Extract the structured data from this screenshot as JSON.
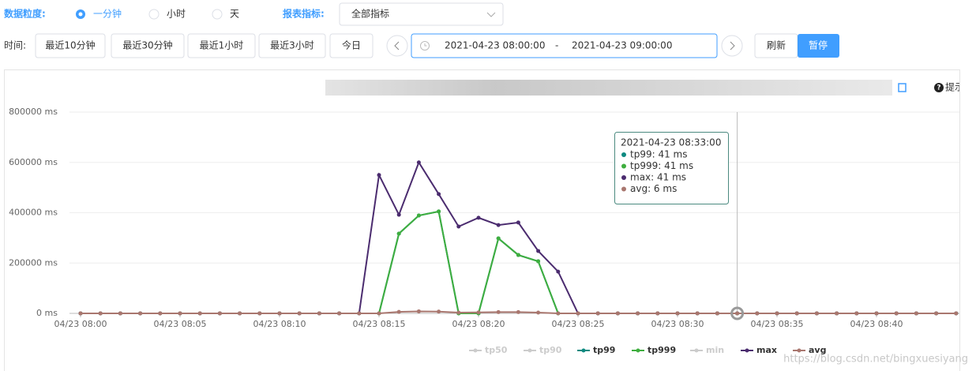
{
  "controls": {
    "granularity_label": "数据粒度:",
    "granularity_options": [
      "一分钟",
      "小时",
      "天"
    ],
    "metric_label": "报表指标:",
    "metric_value": "全部指标",
    "time_label": "时间:",
    "quick_ranges": [
      "最近10分钟",
      "最近30分钟",
      "最近1小时",
      "最近3小时",
      "今日"
    ],
    "range_start": "2021-04-23 08:00:00",
    "range_separator": "-",
    "range_end": "2021-04-23 09:00:00",
    "refresh": "刷新",
    "pause": "暂停"
  },
  "help": "提示",
  "watermark": "https://blog.csdn.net/bingxuesiyang",
  "tooltip": {
    "title": "2021-04-23 08:33:00",
    "lines": [
      "tp99: 41 ms",
      "tp999: 41 ms",
      "max: 41 ms",
      "avg: 6 ms"
    ]
  },
  "chart_data": {
    "type": "line",
    "categories": [
      "04/23 08:00",
      null,
      null,
      null,
      null,
      "04/23 08:05",
      null,
      null,
      null,
      null,
      "04/23 08:10",
      null,
      null,
      null,
      null,
      "04/23 08:15",
      null,
      null,
      null,
      null,
      "04/23 08:20",
      null,
      null,
      null,
      null,
      "04/23 08:25",
      null,
      null,
      null,
      null,
      "04/23 08:30",
      null,
      null,
      null,
      null,
      "04/23 08:35",
      null,
      null,
      null,
      null,
      "04/23 08:40",
      null,
      null,
      null,
      null
    ],
    "ylim": [
      0,
      800000
    ],
    "yticks": [
      {
        "value": 0,
        "label": "0 ms"
      },
      {
        "value": 200000,
        "label": "200000 ms"
      },
      {
        "value": 400000,
        "label": "400000 ms"
      },
      {
        "value": 600000,
        "label": "600000 ms"
      },
      {
        "value": 800000,
        "label": "800000 ms"
      }
    ],
    "grid": true,
    "series": [
      {
        "name": "tp50",
        "visible": false
      },
      {
        "name": "tp90",
        "visible": false
      },
      {
        "name": "tp99",
        "color": "#0e8a80",
        "values": [
          0,
          0,
          0,
          0,
          0,
          0,
          0,
          0,
          0,
          0,
          0,
          0,
          0,
          0,
          0,
          0,
          317000,
          389000,
          405000,
          0,
          0,
          298000,
          232000,
          207000,
          0,
          0,
          0,
          0,
          0,
          0,
          0,
          0,
          0,
          41,
          0,
          0,
          0,
          0,
          0,
          0,
          0,
          0,
          0,
          0,
          0
        ]
      },
      {
        "name": "tp999",
        "color": "#3fae3f",
        "values": [
          0,
          0,
          0,
          0,
          0,
          0,
          0,
          0,
          0,
          0,
          0,
          0,
          0,
          0,
          0,
          0,
          317000,
          389000,
          405000,
          0,
          0,
          298000,
          232000,
          207000,
          0,
          0,
          0,
          0,
          0,
          0,
          0,
          0,
          0,
          41,
          0,
          0,
          0,
          0,
          0,
          0,
          0,
          0,
          0,
          0,
          0
        ]
      },
      {
        "name": "min",
        "visible": false
      },
      {
        "name": "max",
        "color": "#4b2c6f",
        "values": [
          0,
          0,
          0,
          0,
          0,
          0,
          0,
          0,
          0,
          0,
          0,
          0,
          0,
          0,
          0,
          550000,
          392000,
          600000,
          474000,
          345000,
          380000,
          351000,
          361000,
          248000,
          166000,
          0,
          0,
          0,
          0,
          0,
          0,
          0,
          0,
          41,
          0,
          0,
          0,
          0,
          0,
          0,
          0,
          0,
          0,
          0,
          0
        ]
      },
      {
        "name": "avg",
        "color": "#a9776f",
        "values": [
          0,
          0,
          0,
          0,
          0,
          0,
          0,
          0,
          0,
          0,
          0,
          0,
          0,
          0,
          0,
          0,
          6000,
          8000,
          7000,
          3000,
          4000,
          5000,
          5000,
          3000,
          0,
          0,
          0,
          0,
          0,
          0,
          0,
          0,
          0,
          6,
          0,
          0,
          0,
          0,
          0,
          0,
          0,
          0,
          0,
          0,
          0
        ]
      }
    ],
    "highlight_index": 33
  }
}
